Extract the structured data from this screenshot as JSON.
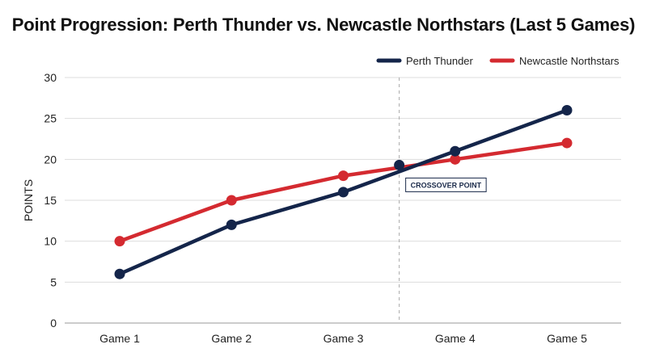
{
  "chart_data": {
    "type": "line",
    "title": "Point Progression: Perth Thunder vs. Newcastle Northstars (Last 5 Games)",
    "xlabel": "",
    "ylabel": "POINTS",
    "categories": [
      "Game 1",
      "Game 2",
      "Game 3",
      "Game 4",
      "Game 5"
    ],
    "ylim": [
      0,
      30
    ],
    "yticks": [
      0,
      5,
      10,
      15,
      20,
      25,
      30
    ],
    "grid": true,
    "legend_position": "top-right",
    "series": [
      {
        "name": "Perth Thunder",
        "color": "#14254a",
        "values": [
          6,
          12,
          16,
          21,
          26
        ]
      },
      {
        "name": "Newcastle Northstars",
        "color": "#d42a30",
        "values": [
          10,
          15,
          18,
          20,
          22
        ]
      }
    ],
    "annotation": {
      "text": "CROSSOVER POINT",
      "x_position": 3.5,
      "y_value": 19.3
    }
  }
}
